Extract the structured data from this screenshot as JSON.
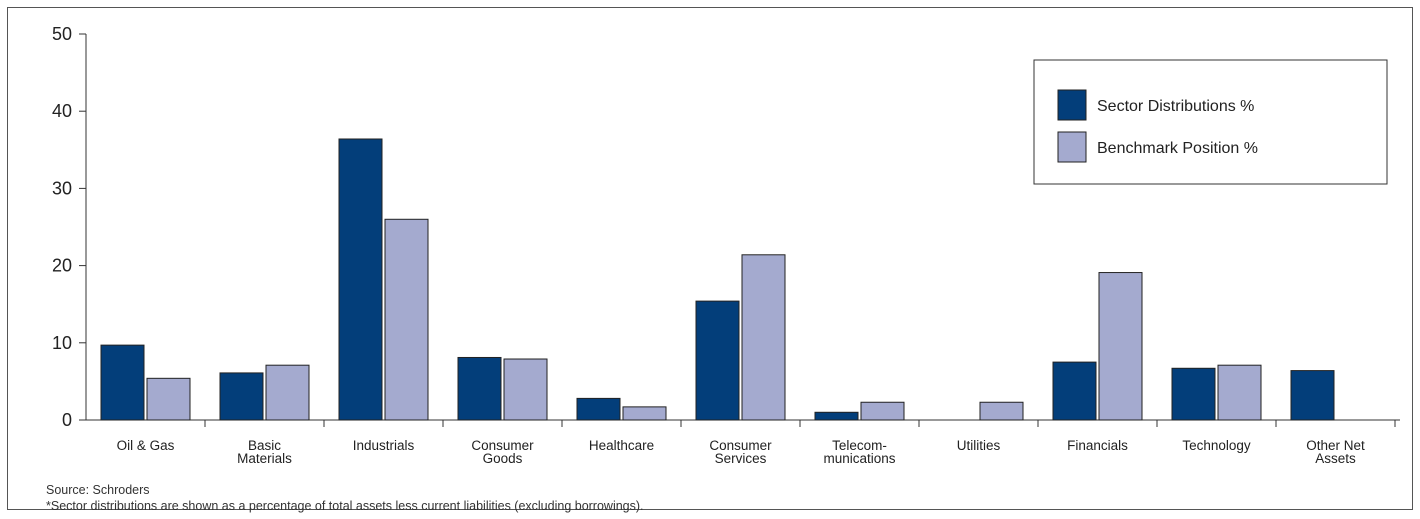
{
  "chart_data": {
    "type": "bar",
    "categories": [
      [
        "Oil & Gas"
      ],
      [
        "Basic",
        "Materials"
      ],
      [
        "Industrials"
      ],
      [
        "Consumer",
        "Goods"
      ],
      [
        "Healthcare"
      ],
      [
        "Consumer",
        "Services"
      ],
      [
        "Telecom-",
        "munications"
      ],
      [
        "Utilities"
      ],
      [
        "Financials"
      ],
      [
        "Technology"
      ],
      [
        "Other Net",
        "Assets"
      ]
    ],
    "series": [
      {
        "name": "Sector Distributions %",
        "color": "#033e7a",
        "values": [
          9.7,
          6.1,
          36.4,
          8.1,
          2.8,
          15.4,
          1.0,
          null,
          7.5,
          6.7,
          6.4
        ]
      },
      {
        "name": "Benchmark Position %",
        "color": "#a4aacf",
        "values": [
          5.4,
          7.1,
          26.0,
          7.9,
          1.7,
          21.4,
          2.3,
          2.3,
          19.1,
          7.1,
          null
        ]
      }
    ],
    "ylim": [
      0,
      50
    ],
    "yticks": [
      "0",
      "10",
      "20",
      "30",
      "40",
      "50"
    ],
    "legend_position": "top-right",
    "grid": false
  },
  "notes": {
    "source": "Source: Schroders",
    "footnote": "*Sector distributions are shown as a percentage of total assets less current liabilities (excluding borrowings)."
  }
}
